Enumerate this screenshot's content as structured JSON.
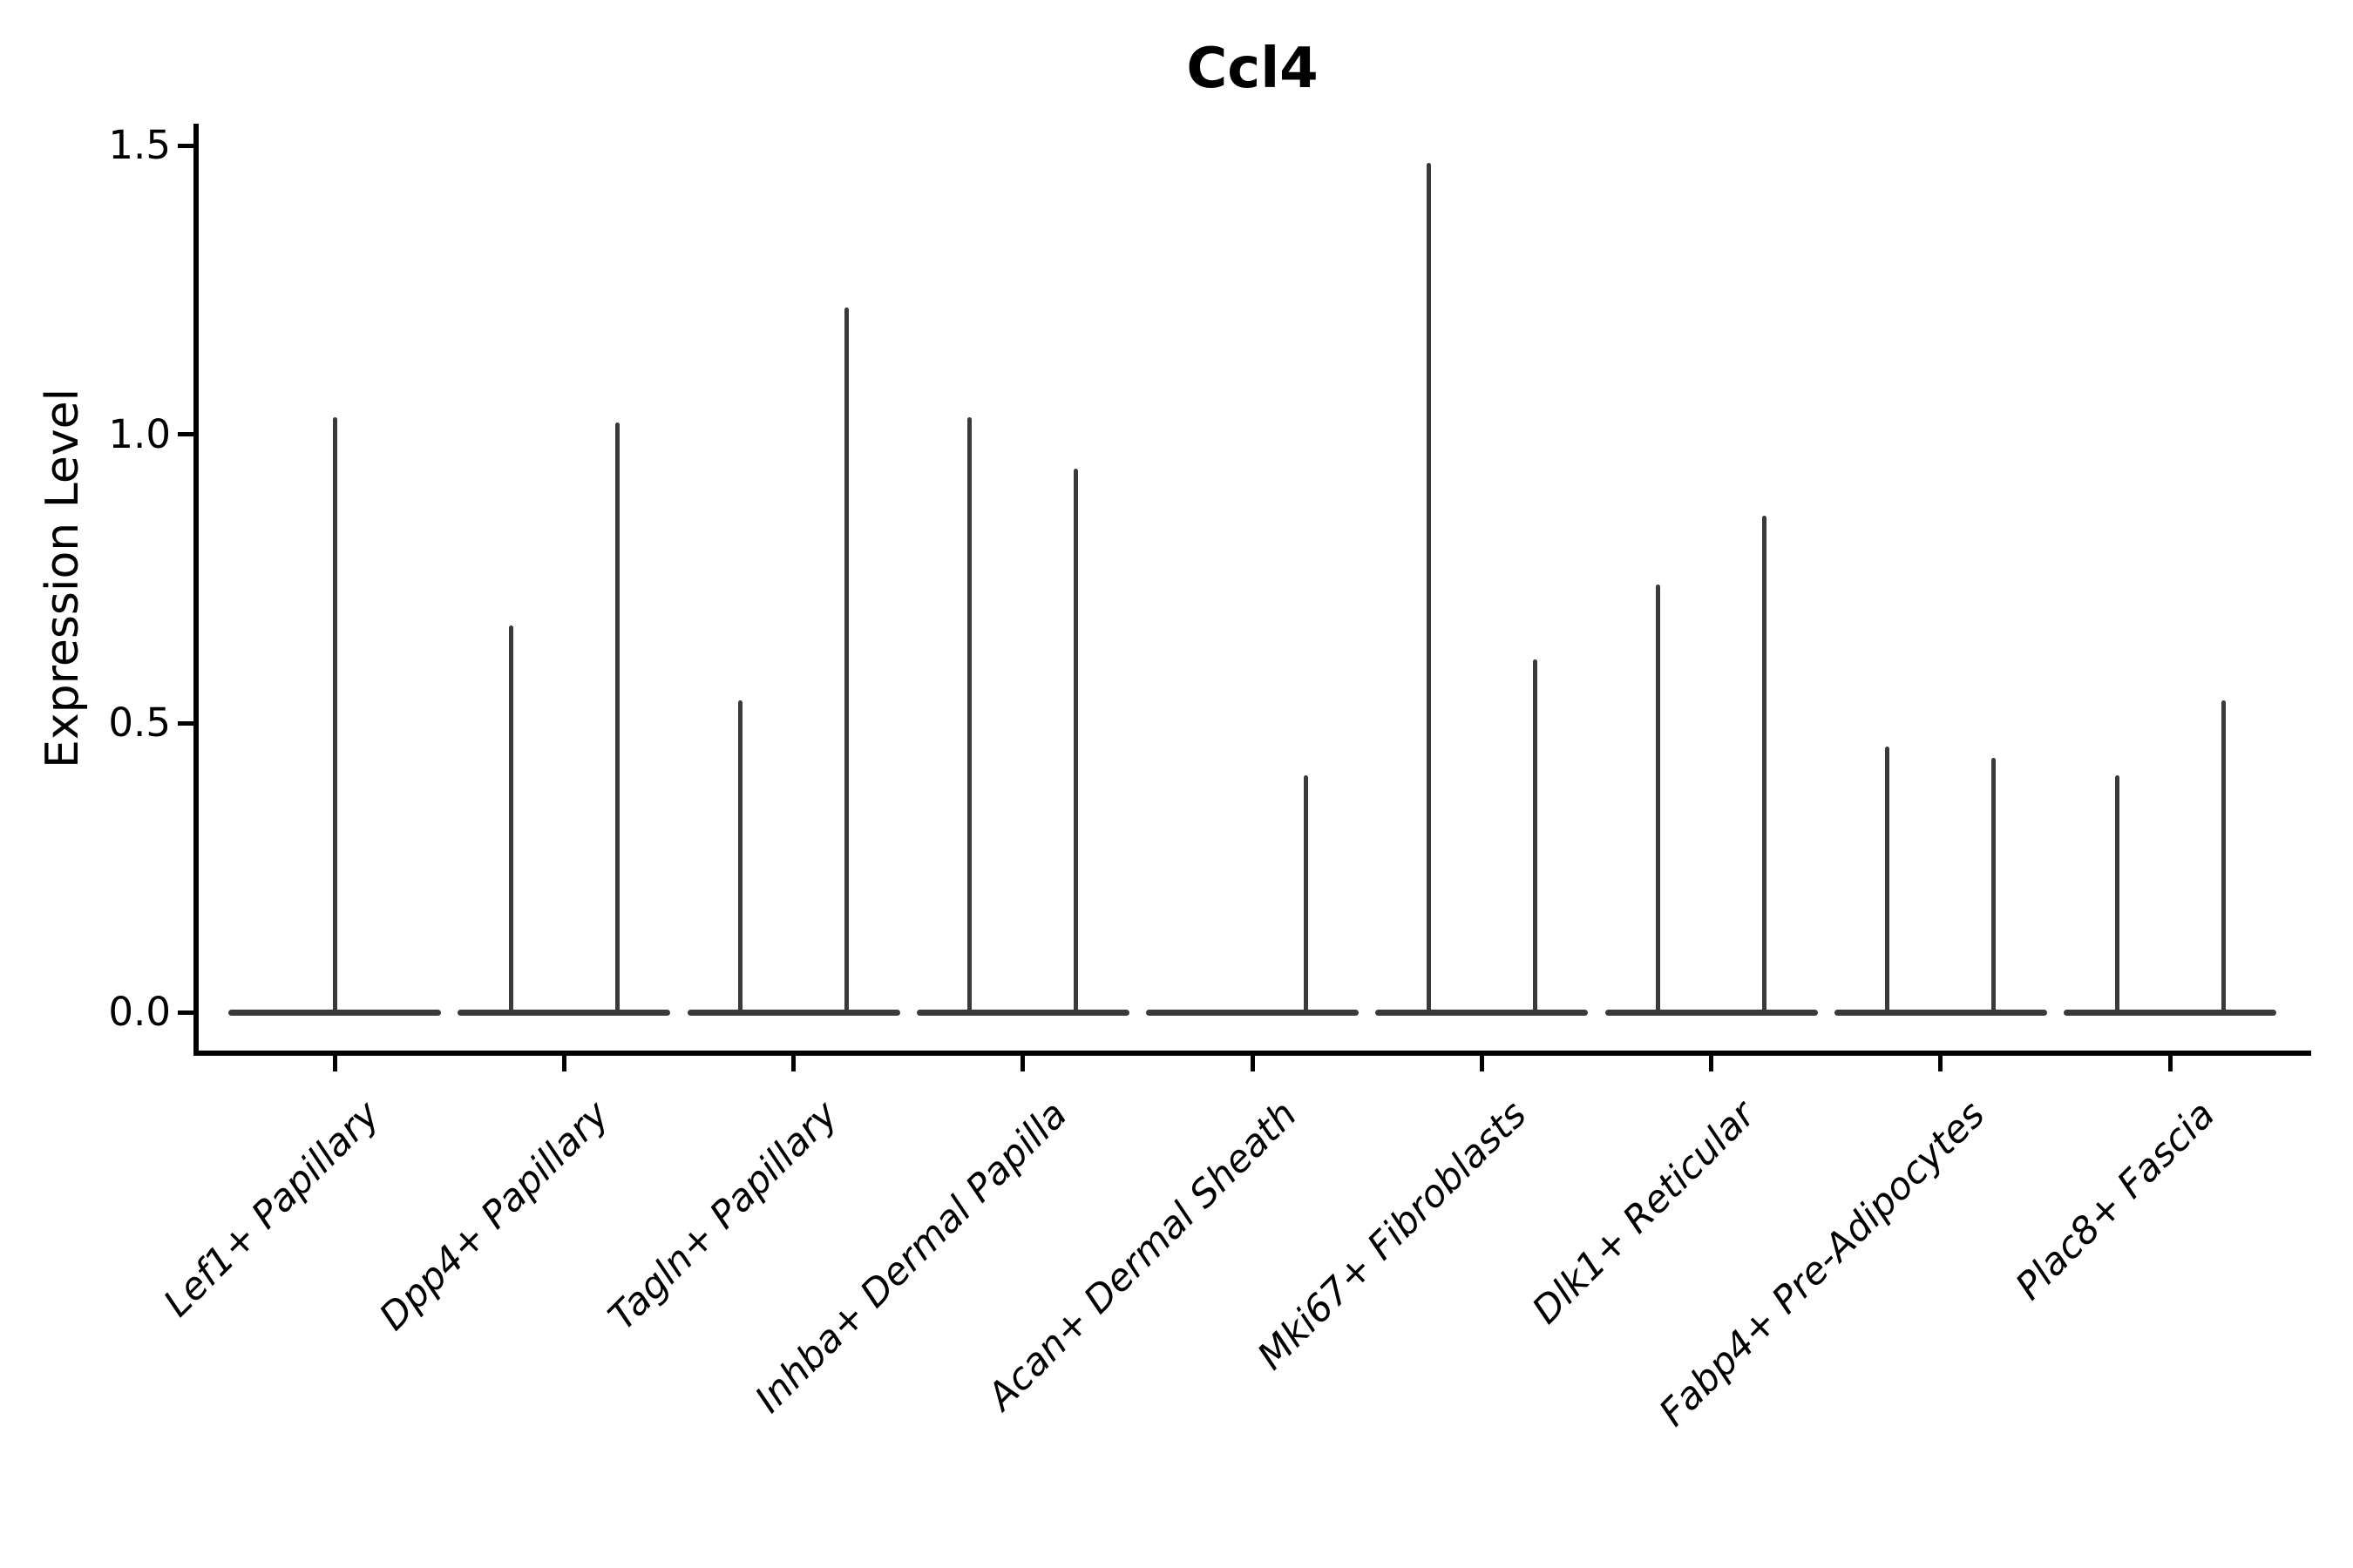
{
  "chart_data": {
    "type": "violin",
    "title": "Ccl4",
    "ylabel": "Expression Level",
    "xlabel": "",
    "yticks": [
      0.0,
      0.5,
      1.0,
      1.5
    ],
    "ylim": [
      -0.07,
      1.54
    ],
    "grid": false,
    "legend": "none",
    "categories": [
      "Lef1+ Papillary",
      "Dpp4+ Papillary",
      "Tagln+ Papillary",
      "Inhba+ Dermal Papilla",
      "Acan+ Dermal Sheath",
      "Mki67+ Fibroblasts",
      "Dlk1+ Reticular",
      "Fabp4+ Pre-Adipocytes",
      "Plac8+ Fascia"
    ],
    "violins": [
      {
        "category": "Lef1+ Papillary",
        "baseline_value": 0,
        "spikes": [
          {
            "side": "center",
            "max": 1.03
          }
        ]
      },
      {
        "category": "Dpp4+ Papillary",
        "baseline_value": 0,
        "spikes": [
          {
            "side": "left",
            "max": 0.67
          },
          {
            "side": "right",
            "max": 1.02
          }
        ]
      },
      {
        "category": "Tagln+ Papillary",
        "baseline_value": 0,
        "spikes": [
          {
            "side": "left",
            "max": 0.54
          },
          {
            "side": "right",
            "max": 1.22
          }
        ]
      },
      {
        "category": "Inhba+ Dermal Papilla",
        "baseline_value": 0,
        "spikes": [
          {
            "side": "left",
            "max": 1.03
          },
          {
            "side": "right",
            "max": 0.94
          }
        ]
      },
      {
        "category": "Acan+ Dermal Sheath",
        "baseline_value": 0,
        "spikes": [
          {
            "side": "right",
            "max": 0.41
          }
        ]
      },
      {
        "category": "Mki67+ Fibroblasts",
        "baseline_value": 0,
        "spikes": [
          {
            "side": "left",
            "max": 1.47
          },
          {
            "side": "right",
            "max": 0.61
          }
        ]
      },
      {
        "category": "Dlk1+ Reticular",
        "baseline_value": 0,
        "spikes": [
          {
            "side": "left",
            "max": 0.74
          },
          {
            "side": "right",
            "max": 0.86
          }
        ]
      },
      {
        "category": "Fabp4+ Pre-Adipocytes",
        "baseline_value": 0,
        "spikes": [
          {
            "side": "left",
            "max": 0.46
          },
          {
            "side": "right",
            "max": 0.44
          }
        ]
      },
      {
        "category": "Plac8+ Fascia",
        "baseline_value": 0,
        "spikes": [
          {
            "side": "left",
            "max": 0.41
          },
          {
            "side": "right",
            "max": 0.54
          }
        ]
      }
    ],
    "style": {
      "violin_color": "#3a3a3a",
      "axis_color": "#000000",
      "text_color": "#000000",
      "background": "#ffffff"
    }
  }
}
